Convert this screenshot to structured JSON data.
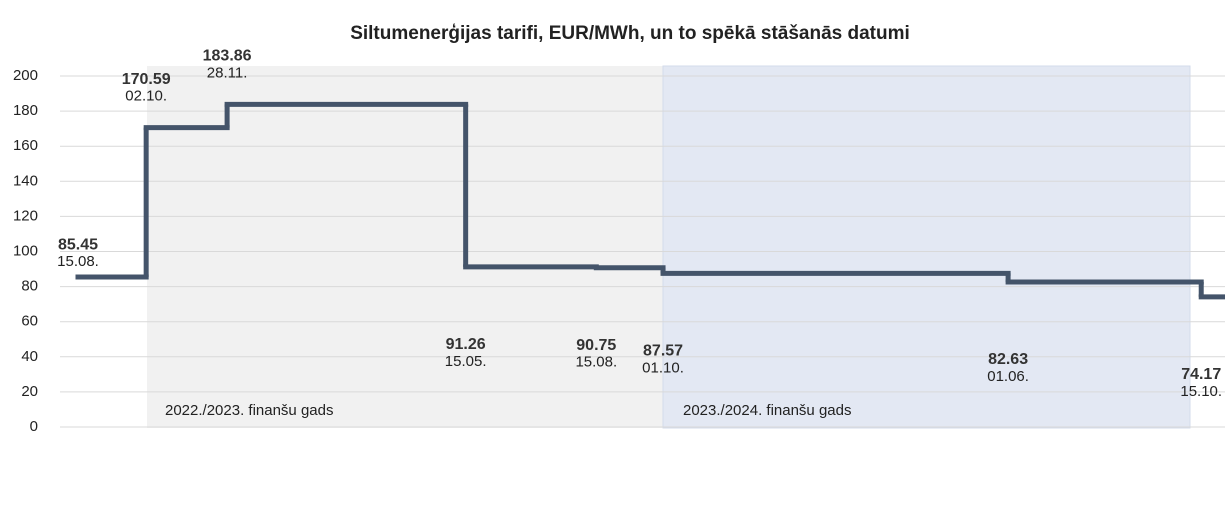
{
  "chart_data": {
    "type": "step",
    "title": "Siltumenerģijas tarifi, EUR/MWh, un to spēkā stāšanās datumi",
    "categories": [
      "15.08.",
      "02.10.",
      "28.11.",
      "15.05.",
      "15.08.",
      "01.10.",
      "01.06.",
      "15.10."
    ],
    "values": [
      85.45,
      170.59,
      183.86,
      91.26,
      90.75,
      87.57,
      82.63,
      74.17
    ],
    "color": "#44546a",
    "ylim": [
      0,
      200
    ],
    "yticks": [
      0,
      20,
      40,
      60,
      80,
      100,
      120,
      140,
      160,
      180,
      200
    ],
    "grid": true,
    "annotations": [
      "2022./2023. finanšu gads",
      "2023./2024. finanšu gads"
    ]
  }
}
